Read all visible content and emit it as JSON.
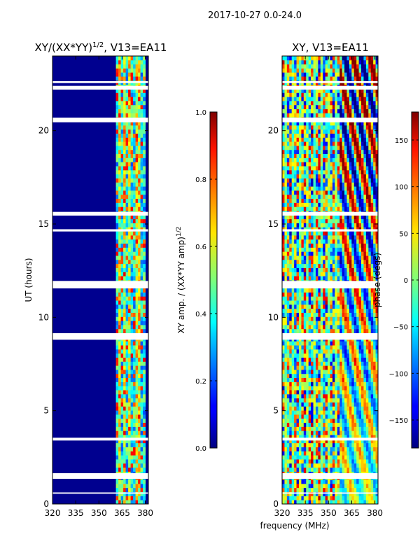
{
  "figure": {
    "suptitle": "2017-10-27 0.0-24.0",
    "xlabel": "frequency (MHz)"
  },
  "chart_data": [
    {
      "type": "heatmap",
      "title_main": "XY/(XX*YY)",
      "title_exp": "1/2",
      "title_tail": ", V13=EA11",
      "ylabel": "UT (hours)",
      "xlim": [
        320,
        382
      ],
      "ylim": [
        0,
        24
      ],
      "xticks": [
        320,
        335,
        350,
        365,
        380
      ],
      "yticks": [
        0,
        5,
        10,
        15,
        20
      ],
      "colormap": "jet",
      "colorbar": {
        "label_main": "XY amp. / (XX*YY amp)",
        "label_exp": "1/2",
        "range": [
          0.0,
          1.0
        ],
        "ticks": [
          0.0,
          0.2,
          0.4,
          0.6,
          0.8,
          1.0
        ],
        "tick_labels": [
          "0.0",
          "0.2",
          "0.4",
          "0.6",
          "0.8",
          "1.0"
        ]
      },
      "active_band_mhz": [
        361,
        380
      ],
      "data_gaps_hours": [
        [
          0.55,
          0.62
        ],
        [
          1.35,
          1.65
        ],
        [
          3.4,
          3.55
        ],
        [
          8.8,
          9.15
        ],
        [
          11.55,
          11.95
        ],
        [
          14.6,
          14.72
        ],
        [
          15.45,
          15.65
        ],
        [
          20.45,
          20.7
        ],
        [
          22.2,
          22.4
        ],
        [
          22.55,
          22.65
        ]
      ]
    },
    {
      "type": "heatmap",
      "title_main": "XY, V13=EA11",
      "title_exp": "",
      "title_tail": "",
      "ylabel": "",
      "xlim": [
        320,
        382
      ],
      "ylim": [
        0,
        24
      ],
      "xticks": [
        320,
        335,
        350,
        365,
        380
      ],
      "yticks": [
        0,
        5,
        10,
        15,
        20
      ],
      "colormap": "jet",
      "colorbar": {
        "label_main": "phase (degs)",
        "label_exp": "",
        "range": [
          -180,
          180
        ],
        "ticks": [
          -150,
          -100,
          -50,
          0,
          50,
          100,
          150
        ],
        "tick_labels": [
          "−150",
          "−100",
          "−50",
          "0",
          "50",
          "100",
          "150"
        ]
      },
      "data_gaps_hours": [
        [
          0.55,
          0.62
        ],
        [
          1.35,
          1.65
        ],
        [
          3.4,
          3.55
        ],
        [
          8.8,
          9.15
        ],
        [
          11.55,
          11.95
        ],
        [
          14.6,
          14.72
        ],
        [
          15.45,
          15.65
        ],
        [
          20.45,
          20.7
        ],
        [
          22.2,
          22.4
        ],
        [
          22.55,
          22.65
        ]
      ]
    }
  ]
}
